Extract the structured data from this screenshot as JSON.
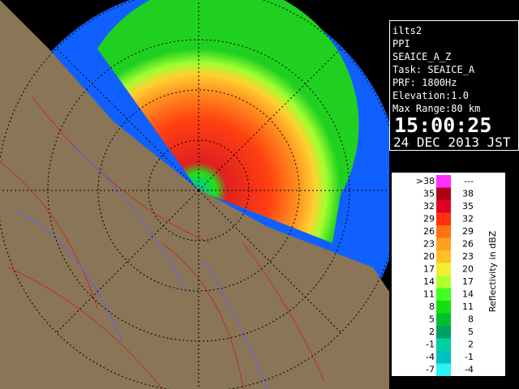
{
  "info": {
    "lines": [
      "ilts2",
      "PPI",
      "SEAICE_A_Z",
      "Task: SEAICE_A",
      "PRF: 1800Hz",
      "Elevation:1.0",
      "Max Range:80 km"
    ],
    "time": "15:00:25",
    "date": "24 DEC 2013 JST"
  },
  "legend": {
    "title": "Reflectivity in dBZ",
    "rows": [
      {
        "low": ">38",
        "high": "---",
        "color": "#ff30ff"
      },
      {
        "low": "35",
        "high": "38",
        "color": "#b00018"
      },
      {
        "low": "32",
        "high": "35",
        "color": "#e00020"
      },
      {
        "low": "29",
        "high": "32",
        "color": "#ff3010"
      },
      {
        "low": "26",
        "high": "29",
        "color": "#ff7010"
      },
      {
        "low": "23",
        "high": "26",
        "color": "#ffa020"
      },
      {
        "low": "20",
        "high": "23",
        "color": "#ffc020"
      },
      {
        "low": "17",
        "high": "20",
        "color": "#f0f030"
      },
      {
        "low": "14",
        "high": "17",
        "color": "#b0ff30"
      },
      {
        "low": "11",
        "high": "14",
        "color": "#40ff20"
      },
      {
        "low": "8",
        "high": "11",
        "color": "#10e010"
      },
      {
        "low": "5",
        "high": "8",
        "color": "#00c030"
      },
      {
        "low": "2",
        "high": "5",
        "color": "#00a060"
      },
      {
        "low": "-1",
        "high": "2",
        "color": "#00d0a0"
      },
      {
        "low": "-4",
        "high": "-1",
        "color": "#00c0c0"
      },
      {
        "low": "-7",
        "high": "-4",
        "color": "#30f0f0"
      }
    ]
  }
}
